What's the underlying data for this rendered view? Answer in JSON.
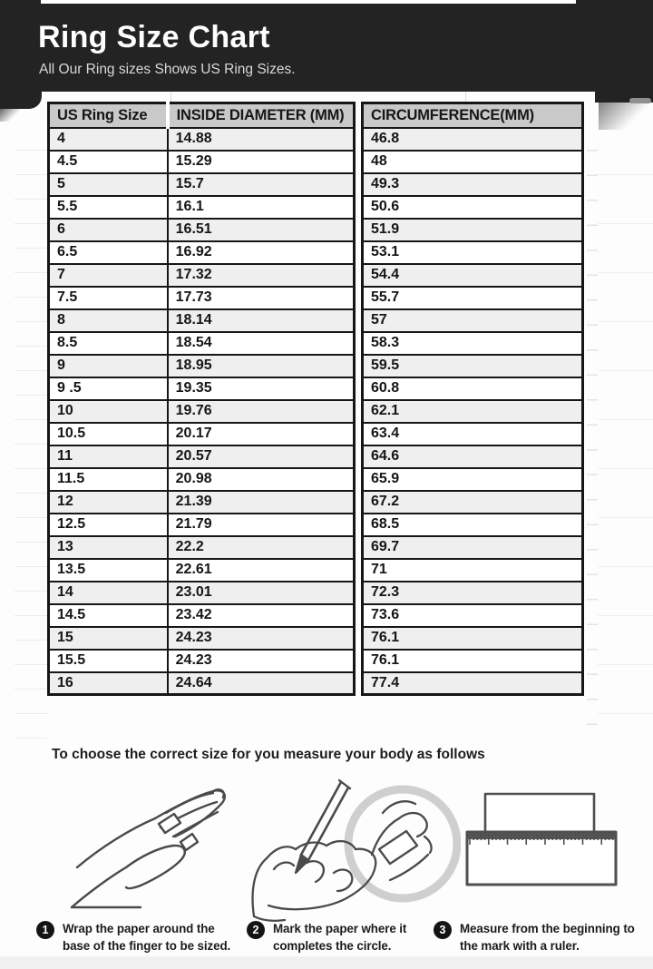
{
  "header": {
    "title": "Ring Size Chart",
    "subtitle": "All Our Ring sizes Shows US Ring Sizes."
  },
  "table": {
    "columns": [
      "US Ring Size",
      "INSIDE DIAMETER (MM)",
      "CIRCUMFERENCE(MM)"
    ],
    "rows": [
      {
        "size": "4",
        "diameter": "14.88",
        "circumference": "46.8"
      },
      {
        "size": "4.5",
        "diameter": "15.29",
        "circumference": "48"
      },
      {
        "size": "5",
        "diameter": "15.7",
        "circumference": "49.3"
      },
      {
        "size": "5.5",
        "diameter": "16.1",
        "circumference": "50.6"
      },
      {
        "size": "6",
        "diameter": "16.51",
        "circumference": "51.9"
      },
      {
        "size": "6.5",
        "diameter": "16.92",
        "circumference": "53.1"
      },
      {
        "size": "7",
        "diameter": "17.32",
        "circumference": "54.4"
      },
      {
        "size": "7.5",
        "diameter": "17.73",
        "circumference": "55.7"
      },
      {
        "size": "8",
        "diameter": "18.14",
        "circumference": "57"
      },
      {
        "size": "8.5",
        "diameter": "18.54",
        "circumference": "58.3"
      },
      {
        "size": "9",
        "diameter": "18.95",
        "circumference": "59.5"
      },
      {
        "size": "9 .5",
        "diameter": "19.35",
        "circumference": "60.8"
      },
      {
        "size": "10",
        "diameter": "19.76",
        "circumference": "62.1"
      },
      {
        "size": "10.5",
        "diameter": "20.17",
        "circumference": "63.4"
      },
      {
        "size": "11",
        "diameter": "20.57",
        "circumference": "64.6"
      },
      {
        "size": "11.5",
        "diameter": "20.98",
        "circumference": "65.9"
      },
      {
        "size": "12",
        "diameter": "21.39",
        "circumference": "67.2"
      },
      {
        "size": "12.5",
        "diameter": "21.79",
        "circumference": "68.5"
      },
      {
        "size": "13",
        "diameter": "22.2",
        "circumference": "69.7"
      },
      {
        "size": "13.5",
        "diameter": "22.61",
        "circumference": "71"
      },
      {
        "size": "14",
        "diameter": "23.01",
        "circumference": "72.3"
      },
      {
        "size": "14.5",
        "diameter": "23.42",
        "circumference": "73.6"
      },
      {
        "size": "15",
        "diameter": "24.23",
        "circumference": "76.1"
      },
      {
        "size": "15.5",
        "diameter": "24.23",
        "circumference": "76.1"
      },
      {
        "size": "16",
        "diameter": "24.64",
        "circumference": "77.4"
      }
    ]
  },
  "chart_data": {
    "type": "table",
    "title": "Ring Size Chart",
    "columns": [
      "US Ring Size",
      "INSIDE DIAMETER (MM)",
      "CIRCUMFERENCE(MM)"
    ],
    "us_ring_sizes": [
      "4",
      "4.5",
      "5",
      "5.5",
      "6",
      "6.5",
      "7",
      "7.5",
      "8",
      "8.5",
      "9",
      "9 .5",
      "10",
      "10.5",
      "11",
      "11.5",
      "12",
      "12.5",
      "13",
      "13.5",
      "14",
      "14.5",
      "15",
      "15.5",
      "16"
    ],
    "inside_diameter_mm": [
      14.88,
      15.29,
      15.7,
      16.1,
      16.51,
      16.92,
      17.32,
      17.73,
      18.14,
      18.54,
      18.95,
      19.35,
      19.76,
      20.17,
      20.57,
      20.98,
      21.39,
      21.79,
      22.2,
      22.61,
      23.01,
      23.42,
      24.23,
      24.23,
      24.64
    ],
    "circumference_mm": [
      46.8,
      48,
      49.3,
      50.6,
      51.9,
      53.1,
      54.4,
      55.7,
      57,
      58.3,
      59.5,
      60.8,
      62.1,
      63.4,
      64.6,
      65.9,
      67.2,
      68.5,
      69.7,
      71,
      72.3,
      73.6,
      76.1,
      76.1,
      77.4
    ]
  },
  "note": "To choose the correct size for you measure your body as follows",
  "steps": [
    {
      "num": "1",
      "text": "Wrap the paper around the base of the finger to be sized."
    },
    {
      "num": "2",
      "text": "Mark the paper where it completes the circle."
    },
    {
      "num": "3",
      "text": "Measure from the beginning to the mark with a ruler."
    }
  ],
  "illustrations": [
    "hand-with-paper-strip-icon",
    "hand-marking-paper-with-pencil-icon",
    "ruler-measuring-paper-icon"
  ],
  "colors": {
    "header_bg": "#232323",
    "title_text": "#ffffff",
    "subtitle_text": "#d8d8d8",
    "table_header_bg": "#c9c9c9",
    "row_alt_bg": "#efefef",
    "table_border": "#161616",
    "step_circle_bg": "#141414"
  }
}
